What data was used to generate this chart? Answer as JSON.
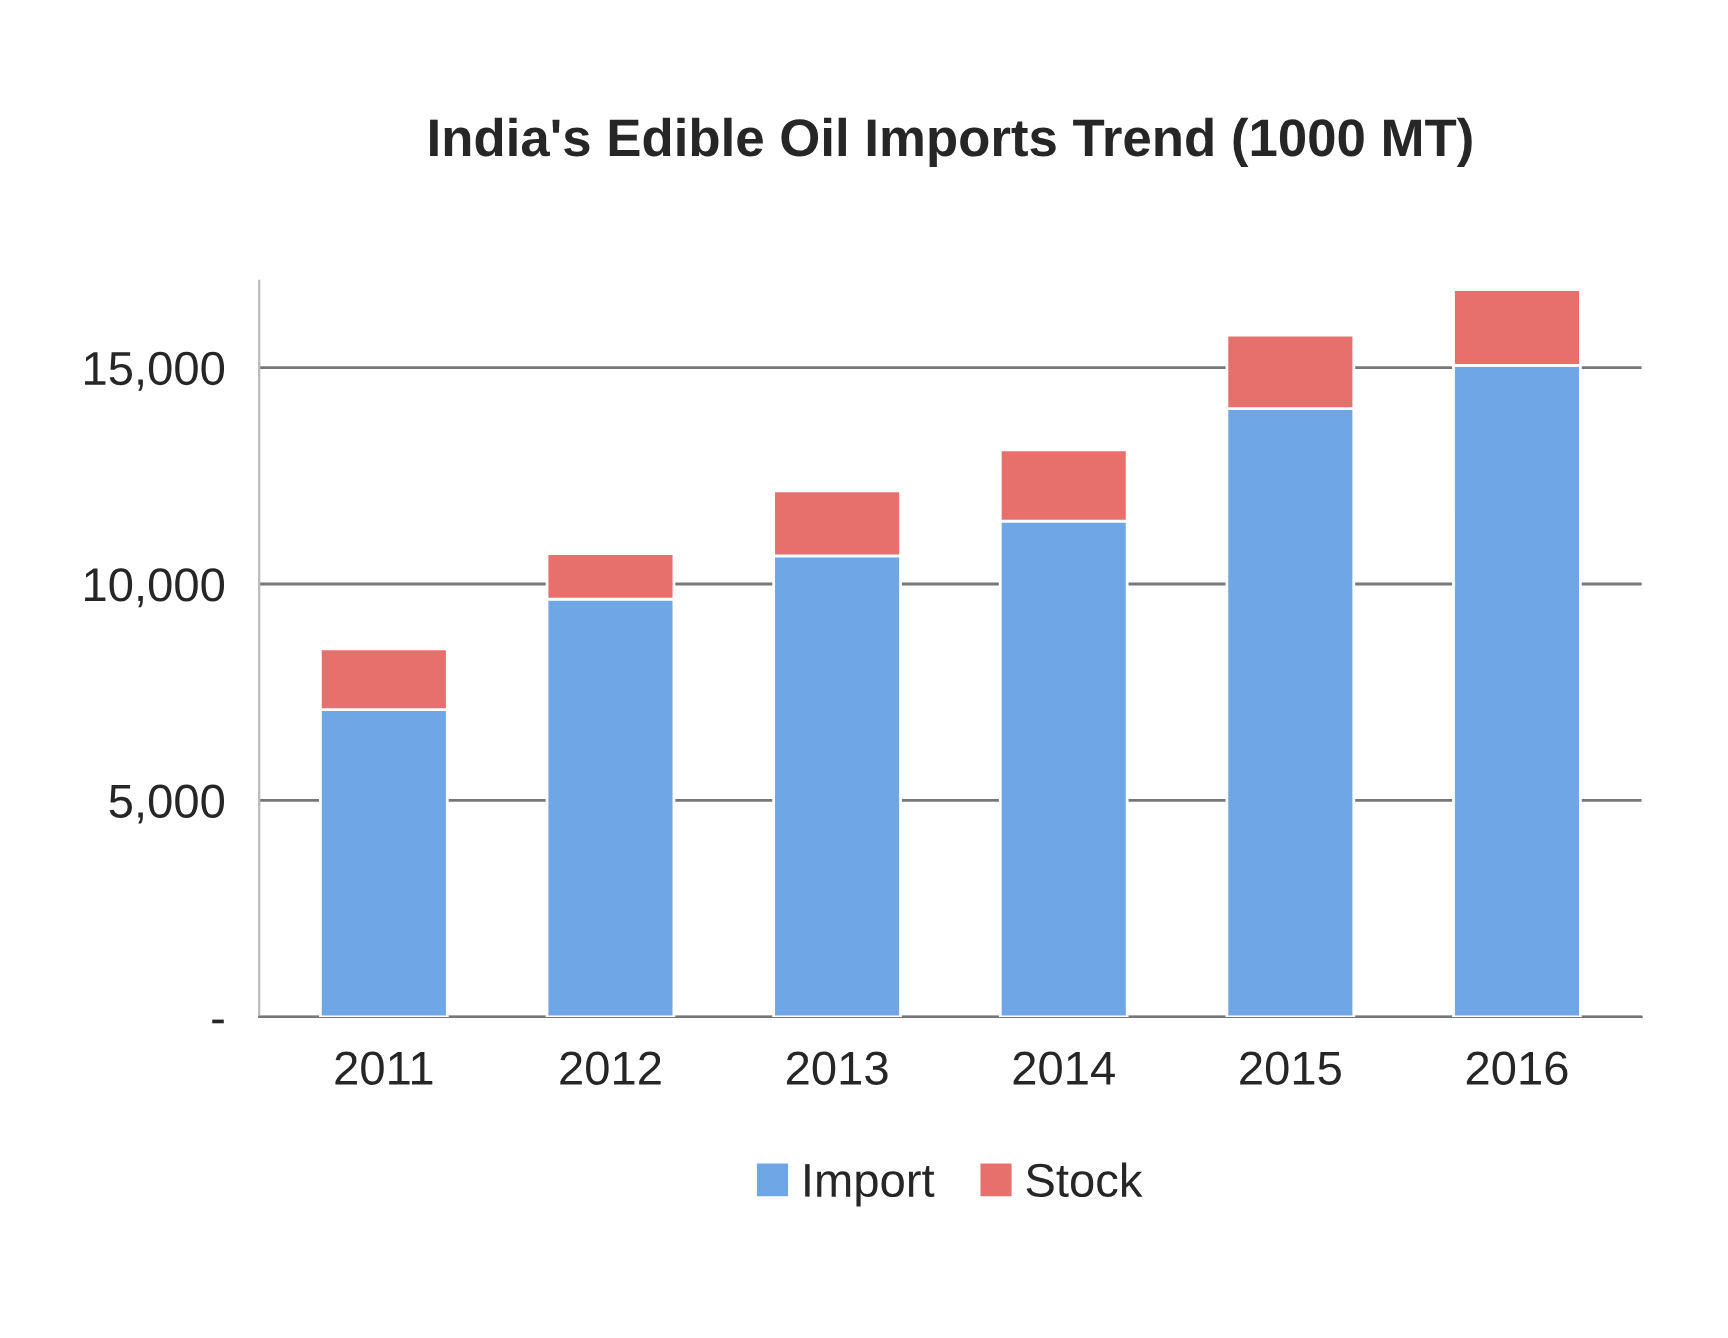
{
  "chart_data": {
    "type": "bar",
    "title": "India's Edible Oil Imports Trend (1000 MT)",
    "categories": [
      "2011",
      "2012",
      "2013",
      "2014",
      "2015",
      "2016"
    ],
    "stacked": true,
    "series": [
      {
        "name": "Import",
        "color": "#6fa6e6",
        "values": [
          7100,
          9650,
          10650,
          11450,
          14050,
          15050
        ]
      },
      {
        "name": "Stock",
        "color": "#e8706c",
        "values": [
          1400,
          1050,
          1500,
          1650,
          1700,
          1750
        ]
      }
    ],
    "ylim": [
      0,
      17000
    ],
    "yticks": [
      {
        "value": 0,
        "label": "-"
      },
      {
        "value": 5000,
        "label": "5,000"
      },
      {
        "value": 10000,
        "label": "10,000"
      },
      {
        "value": 15000,
        "label": "15,000"
      }
    ],
    "grid": "y",
    "legend": "bottom"
  }
}
